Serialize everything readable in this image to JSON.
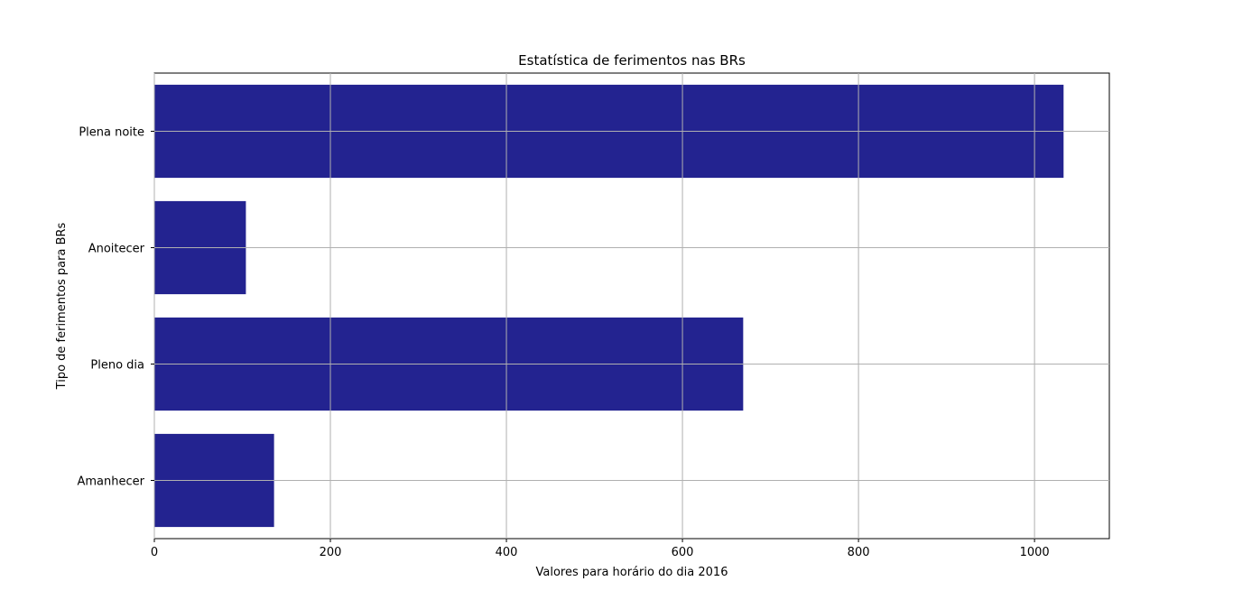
{
  "chart_data": {
    "type": "bar",
    "orientation": "horizontal",
    "title": "Estatística de ferimentos nas BRs",
    "xlabel": "Valores para horário do dia 2016",
    "ylabel": "Tipo de ferimentos para BRs",
    "categories": [
      "Amanhecer",
      "Pleno dia",
      "Anoitecer",
      "Plena noite"
    ],
    "values": [
      136,
      669,
      104,
      1033
    ],
    "xlim": [
      0,
      1085
    ],
    "xticks": [
      0,
      200,
      400,
      600,
      800,
      1000
    ],
    "grid": true,
    "legend": "none",
    "bar_color": "#232390",
    "grid_color": "#b0b0b0"
  }
}
